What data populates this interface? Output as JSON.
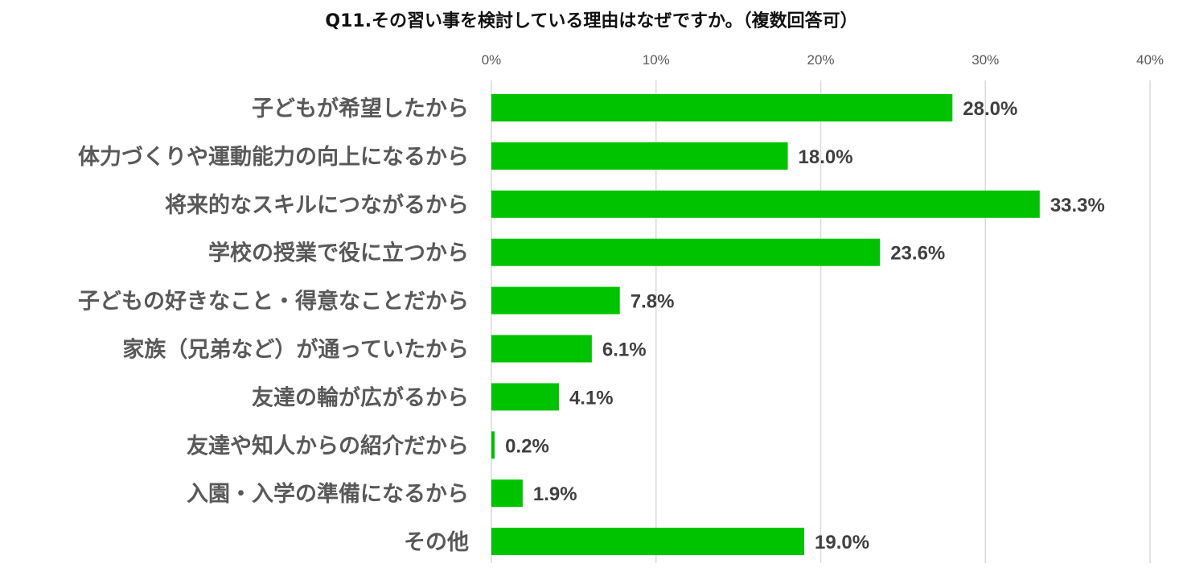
{
  "chart_data": {
    "type": "bar",
    "orientation": "horizontal",
    "title": "Q11.その習い事を検討している理由はなぜですか。（複数回答可）",
    "categories": [
      "子どもが希望したから",
      "体力づくりや運動能力の向上になるから",
      "将来的なスキルにつながるから",
      "学校の授業で役に立つから",
      "子どもの好きなこと・得意なことだから",
      "家族（兄弟など）が通っていたから",
      "友達の輪が広がるから",
      "友達や知人からの紹介だから",
      "入園・入学の準備になるから",
      "その他"
    ],
    "values": [
      28.0,
      18.0,
      33.3,
      23.6,
      7.8,
      6.1,
      4.1,
      0.2,
      1.9,
      19.0
    ],
    "value_labels": [
      "28.0%",
      "18.0%",
      "33.3%",
      "23.6%",
      "7.8%",
      "6.1%",
      "4.1%",
      "0.2%",
      "1.9%",
      "19.0%"
    ],
    "xlim": [
      0,
      40
    ],
    "xticks": [
      0,
      10,
      20,
      30,
      40
    ],
    "xtick_labels": [
      "0%",
      "10%",
      "20%",
      "30%",
      "40%"
    ],
    "x_axis_position": "top",
    "grid": true,
    "bar_color": "#00c300",
    "grid_color": "#d9d9d9"
  }
}
